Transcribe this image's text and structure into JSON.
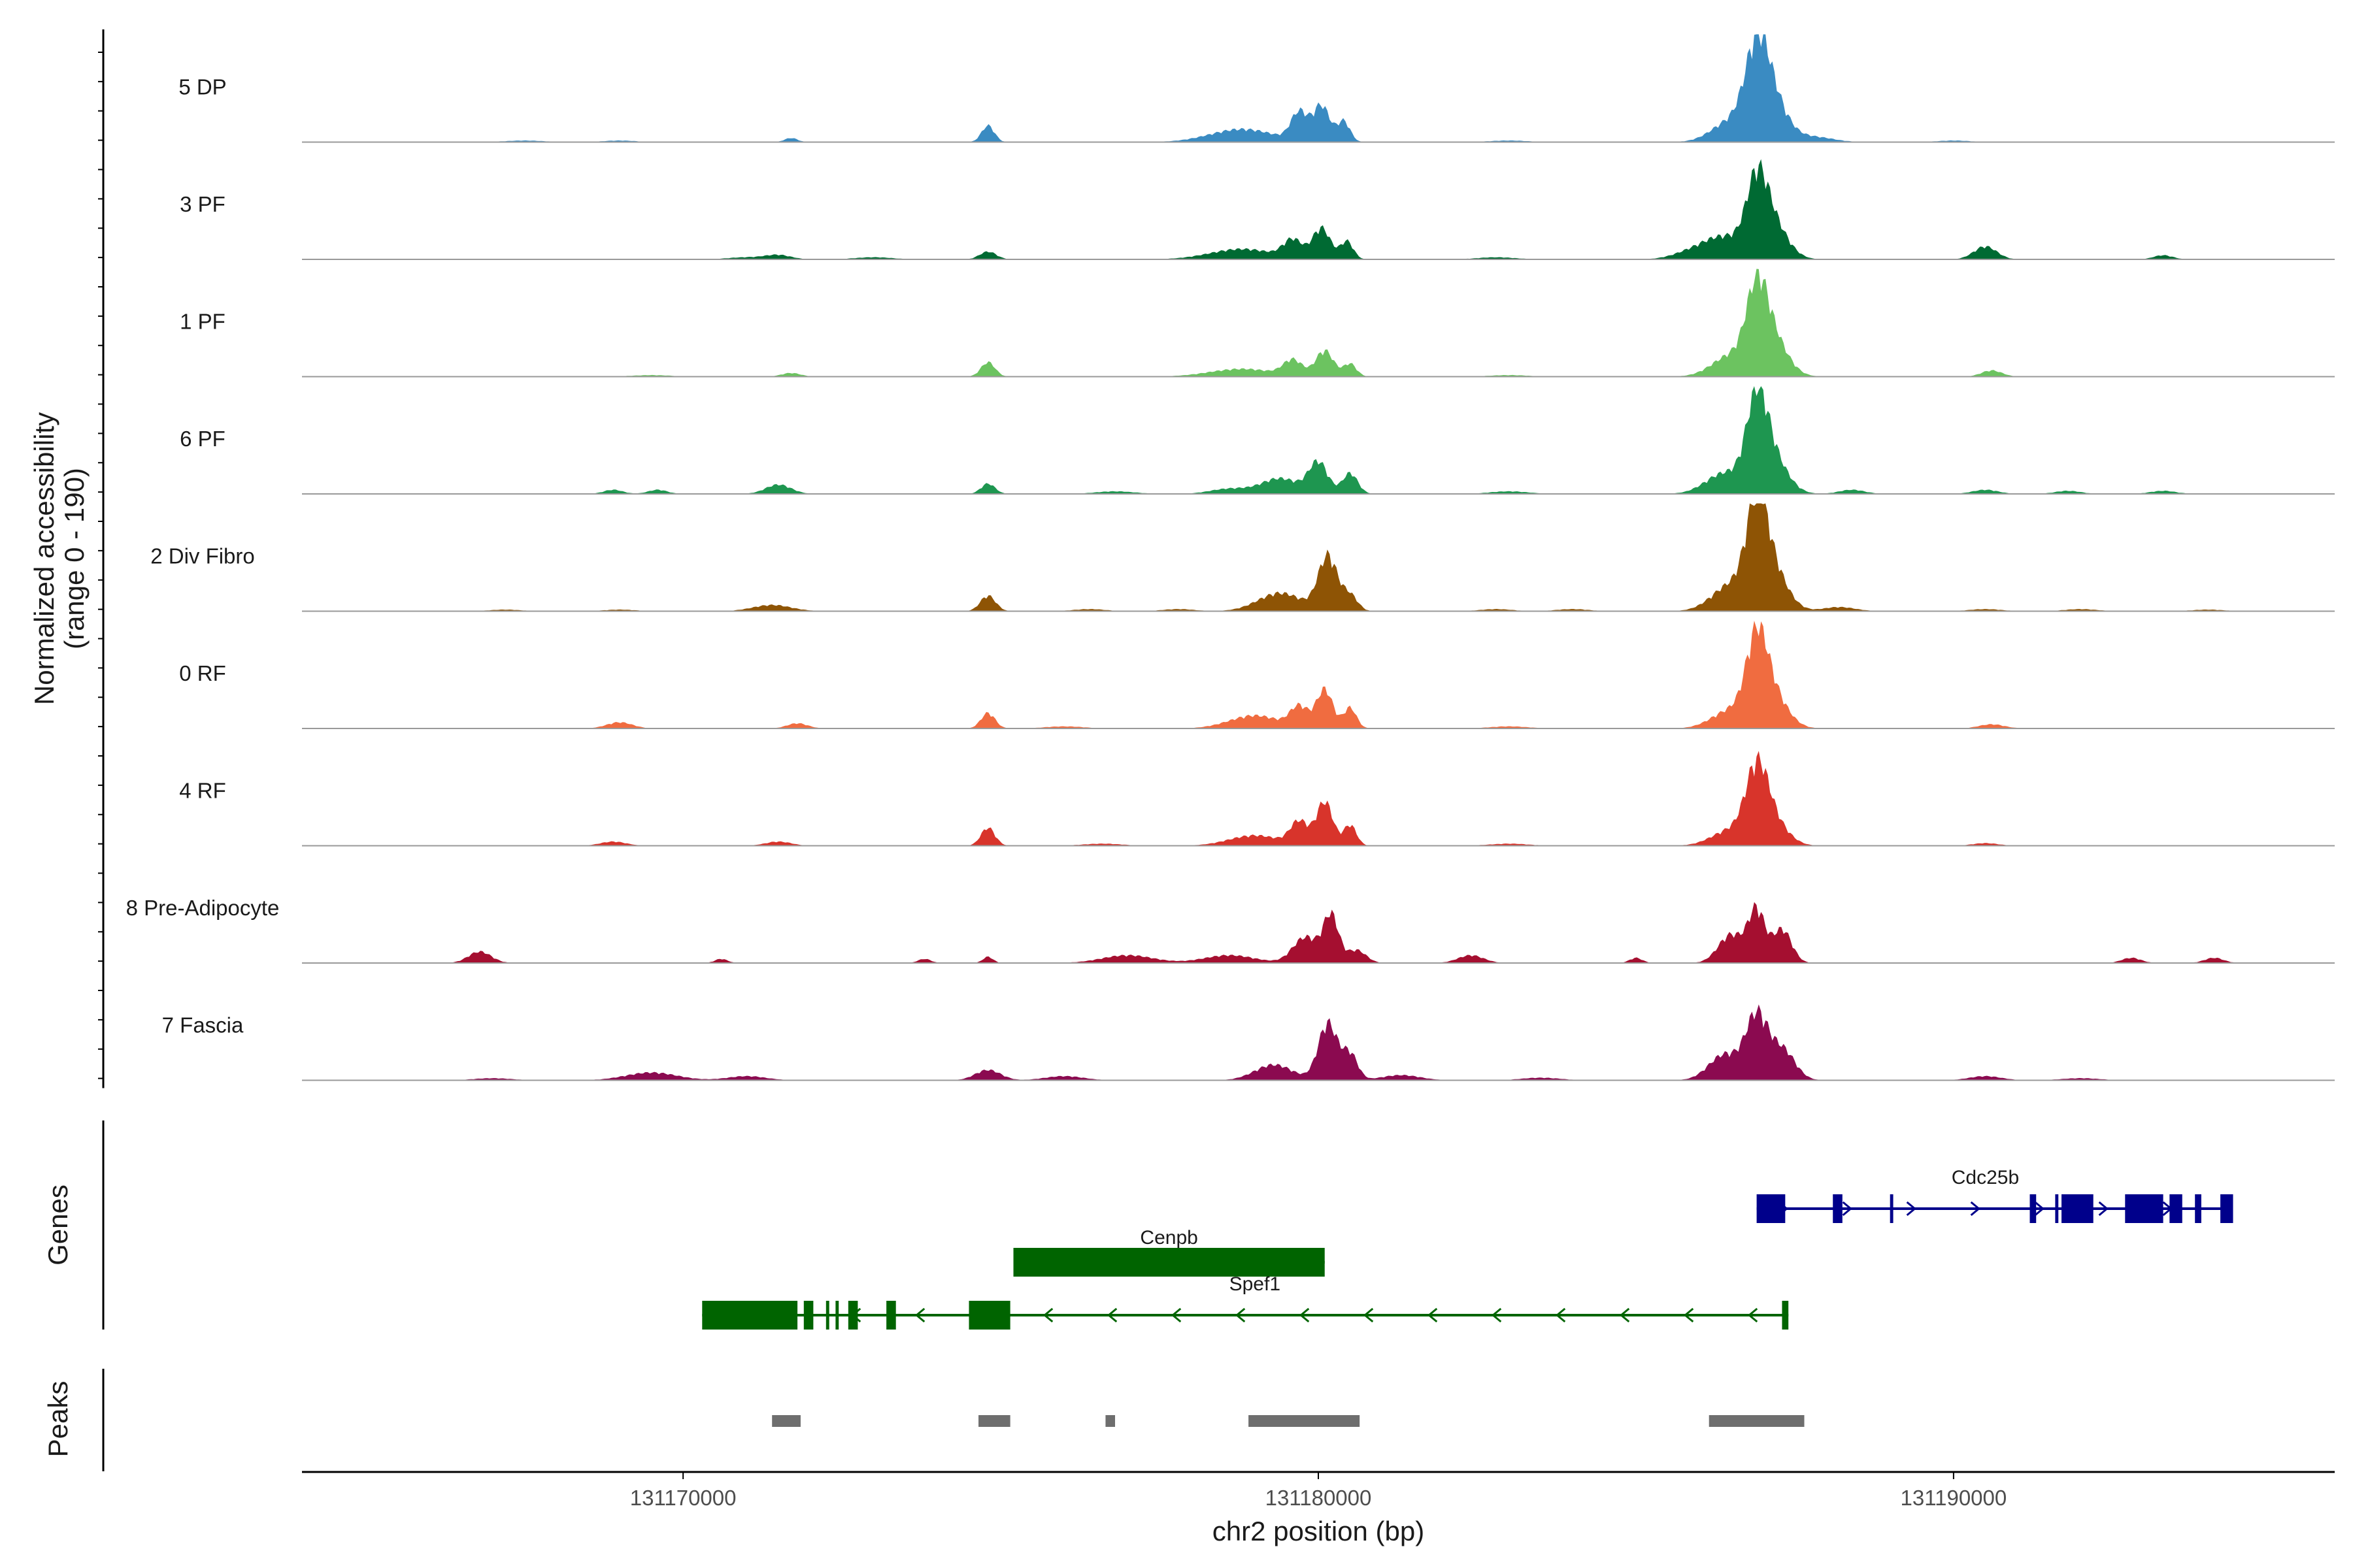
{
  "chart_data": {
    "type": "area",
    "ylabel_line1": "Normalized accessibility",
    "ylabel_line2": "(range 0 - 190)",
    "xlabel": "chr2 position (bp)",
    "xlim": [
      131164000,
      131196000
    ],
    "ylim": [
      0,
      190
    ],
    "xticks": [
      {
        "value": 131170000,
        "label": "131170000"
      },
      {
        "value": 131180000,
        "label": "131180000"
      },
      {
        "value": 131190000,
        "label": "131190000"
      }
    ],
    "series": [
      {
        "name": "5 DP",
        "color": "#3A8BC2",
        "peaks": [
          [
            131171700,
            8,
            100
          ],
          [
            131174800,
            32,
            100
          ],
          [
            131178800,
            25,
            500
          ],
          [
            131179700,
            55,
            130
          ],
          [
            131180050,
            70,
            130
          ],
          [
            131180400,
            40,
            100
          ],
          [
            131186900,
            130,
            180
          ],
          [
            131187100,
            90,
            250
          ],
          [
            131186500,
            40,
            300
          ],
          [
            131187800,
            10,
            300
          ],
          [
            131169000,
            3,
            250
          ],
          [
            131167500,
            3,
            300
          ],
          [
            131183000,
            3,
            300
          ],
          [
            131190000,
            3,
            250
          ]
        ]
      },
      {
        "name": "3 PF",
        "color": "#006A33",
        "peaks": [
          [
            131174800,
            15,
            130
          ],
          [
            131178800,
            20,
            500
          ],
          [
            131179600,
            35,
            150
          ],
          [
            131180050,
            60,
            140
          ],
          [
            131180450,
            35,
            100
          ],
          [
            131185900,
            15,
            300
          ],
          [
            131186900,
            110,
            160
          ],
          [
            131187100,
            80,
            250
          ],
          [
            131186400,
            40,
            300
          ],
          [
            131190500,
            25,
            180
          ],
          [
            131193300,
            8,
            150
          ],
          [
            131171500,
            8,
            200
          ],
          [
            131171000,
            4,
            300
          ],
          [
            131173000,
            4,
            300
          ],
          [
            131182800,
            4,
            300
          ]
        ]
      },
      {
        "name": "1 PF",
        "color": "#6CC360",
        "peaks": [
          [
            131171700,
            7,
            150
          ],
          [
            131174800,
            28,
            110
          ],
          [
            131178800,
            15,
            500
          ],
          [
            131179600,
            30,
            150
          ],
          [
            131180100,
            50,
            140
          ],
          [
            131180500,
            25,
            100
          ],
          [
            131186900,
            120,
            160
          ],
          [
            131187100,
            85,
            250
          ],
          [
            131186500,
            40,
            300
          ],
          [
            131190600,
            12,
            160
          ],
          [
            131169500,
            3,
            300
          ],
          [
            131183000,
            3,
            300
          ]
        ]
      },
      {
        "name": "6 PF",
        "color": "#1E9650",
        "peaks": [
          [
            131168900,
            8,
            150
          ],
          [
            131169600,
            8,
            150
          ],
          [
            131171500,
            18,
            200
          ],
          [
            131174800,
            20,
            110
          ],
          [
            131178600,
            10,
            300
          ],
          [
            131179400,
            30,
            300
          ],
          [
            131180000,
            60,
            150
          ],
          [
            131180500,
            40,
            120
          ],
          [
            131186900,
            140,
            160
          ],
          [
            131187100,
            80,
            250
          ],
          [
            131186400,
            40,
            300
          ],
          [
            131188400,
            8,
            200
          ],
          [
            131190500,
            8,
            200
          ],
          [
            131191800,
            6,
            200
          ],
          [
            131193300,
            6,
            200
          ],
          [
            131176800,
            5,
            300
          ],
          [
            131183000,
            5,
            300
          ]
        ]
      },
      {
        "name": "2 Div Fibro",
        "color": "#8E5405",
        "peaks": [
          [
            131171400,
            12,
            300
          ],
          [
            131174800,
            30,
            120
          ],
          [
            131179400,
            35,
            350
          ],
          [
            131180150,
            105,
            150
          ],
          [
            131180500,
            30,
            120
          ],
          [
            131186900,
            150,
            160
          ],
          [
            131187100,
            90,
            250
          ],
          [
            131186500,
            50,
            300
          ],
          [
            131188200,
            8,
            250
          ],
          [
            131167200,
            3,
            250
          ],
          [
            131169000,
            3,
            250
          ],
          [
            131176400,
            4,
            250
          ],
          [
            131177800,
            4,
            250
          ],
          [
            131182800,
            4,
            250
          ],
          [
            131184000,
            4,
            250
          ],
          [
            131190500,
            4,
            250
          ],
          [
            131192000,
            4,
            250
          ],
          [
            131194000,
            3,
            250
          ]
        ]
      },
      {
        "name": "0 RF",
        "color": "#F06C40",
        "peaks": [
          [
            131169000,
            12,
            200
          ],
          [
            131171800,
            10,
            160
          ],
          [
            131174800,
            30,
            110
          ],
          [
            131179000,
            25,
            400
          ],
          [
            131179700,
            40,
            140
          ],
          [
            131180100,
            75,
            130
          ],
          [
            131180500,
            40,
            100
          ],
          [
            131186900,
            130,
            160
          ],
          [
            131187100,
            75,
            250
          ],
          [
            131186500,
            35,
            300
          ],
          [
            131190600,
            8,
            200
          ],
          [
            131183000,
            4,
            300
          ],
          [
            131176000,
            4,
            300
          ]
        ]
      },
      {
        "name": "4 RF",
        "color": "#D8342B",
        "peaks": [
          [
            131168900,
            8,
            200
          ],
          [
            131171500,
            8,
            200
          ],
          [
            131174800,
            35,
            110
          ],
          [
            131179000,
            20,
            400
          ],
          [
            131179700,
            45,
            140
          ],
          [
            131180100,
            85,
            130
          ],
          [
            131180500,
            40,
            100
          ],
          [
            131186900,
            115,
            170
          ],
          [
            131187100,
            55,
            250
          ],
          [
            131186500,
            30,
            300
          ],
          [
            131190500,
            5,
            200
          ],
          [
            131183000,
            4,
            300
          ],
          [
            131176600,
            4,
            300
          ]
        ]
      },
      {
        "name": "8 Pre-Adipocyte",
        "color": "#A50F30",
        "peaks": [
          [
            131166800,
            22,
            180
          ],
          [
            131174800,
            12,
            80
          ],
          [
            131177000,
            15,
            400
          ],
          [
            131178600,
            15,
            400
          ],
          [
            131179800,
            50,
            200
          ],
          [
            131180200,
            90,
            120
          ],
          [
            131180600,
            25,
            150
          ],
          [
            131182400,
            15,
            200
          ],
          [
            131186500,
            55,
            200
          ],
          [
            131186900,
            100,
            130
          ],
          [
            131187300,
            65,
            150
          ],
          [
            131192800,
            10,
            150
          ],
          [
            131194100,
            10,
            150
          ],
          [
            131185000,
            10,
            100
          ],
          [
            131173800,
            8,
            100
          ],
          [
            131170600,
            8,
            100
          ]
        ]
      },
      {
        "name": "7 Fascia",
        "color": "#8B0A50",
        "peaks": [
          [
            131169500,
            15,
            400
          ],
          [
            131171000,
            8,
            300
          ],
          [
            131174800,
            20,
            200
          ],
          [
            131176000,
            8,
            300
          ],
          [
            131179300,
            30,
            300
          ],
          [
            131180150,
            110,
            150
          ],
          [
            131180500,
            50,
            120
          ],
          [
            131181300,
            10,
            300
          ],
          [
            131186400,
            50,
            250
          ],
          [
            131186900,
            120,
            170
          ],
          [
            131187300,
            60,
            200
          ],
          [
            131190500,
            8,
            250
          ],
          [
            131167000,
            4,
            300
          ],
          [
            131183500,
            5,
            300
          ],
          [
            131192000,
            4,
            300
          ]
        ]
      }
    ],
    "genes": [
      {
        "name": "Cdc25b",
        "strand": "+",
        "color": "#00008B",
        "start": 131186900,
        "end": 131194400,
        "exons": [
          [
            131186900,
            131187350
          ],
          [
            131188100,
            131188250
          ],
          [
            131189000,
            131189050
          ],
          [
            131191200,
            131191300
          ],
          [
            131191600,
            131191650
          ],
          [
            131191700,
            131191750
          ],
          [
            131191700,
            131192200
          ],
          [
            131192700,
            131193300
          ],
          [
            131193400,
            131193600
          ],
          [
            131193800,
            131193900
          ],
          [
            131194200,
            131194400
          ]
        ]
      },
      {
        "name": "Cenpb",
        "strand": "+",
        "color": "#006400",
        "start": 131175200,
        "end": 131180100,
        "exons": [
          [
            131175200,
            131180100
          ]
        ]
      },
      {
        "name": "Spef1",
        "strand": "-",
        "color": "#006400",
        "start": 131170300,
        "end": 131187400,
        "exons": [
          [
            131170300,
            131171800
          ],
          [
            131171900,
            131172050
          ],
          [
            131172250,
            131172300
          ],
          [
            131172400,
            131172450
          ],
          [
            131172600,
            131172750
          ],
          [
            131173200,
            131173350
          ],
          [
            131174500,
            131175150
          ],
          [
            131187300,
            131187400
          ]
        ]
      }
    ],
    "peak_regions": [
      [
        131171400,
        131171850
      ],
      [
        131174650,
        131175150
      ],
      [
        131176650,
        131176800
      ],
      [
        131178900,
        131180650
      ],
      [
        131186150,
        131187650
      ]
    ]
  },
  "panels": {
    "genes_title": "Genes",
    "peaks_title": "Peaks"
  },
  "colors": {
    "axis": "#000000",
    "baseline": "#999999",
    "peak_region": "#6E6E6E"
  }
}
